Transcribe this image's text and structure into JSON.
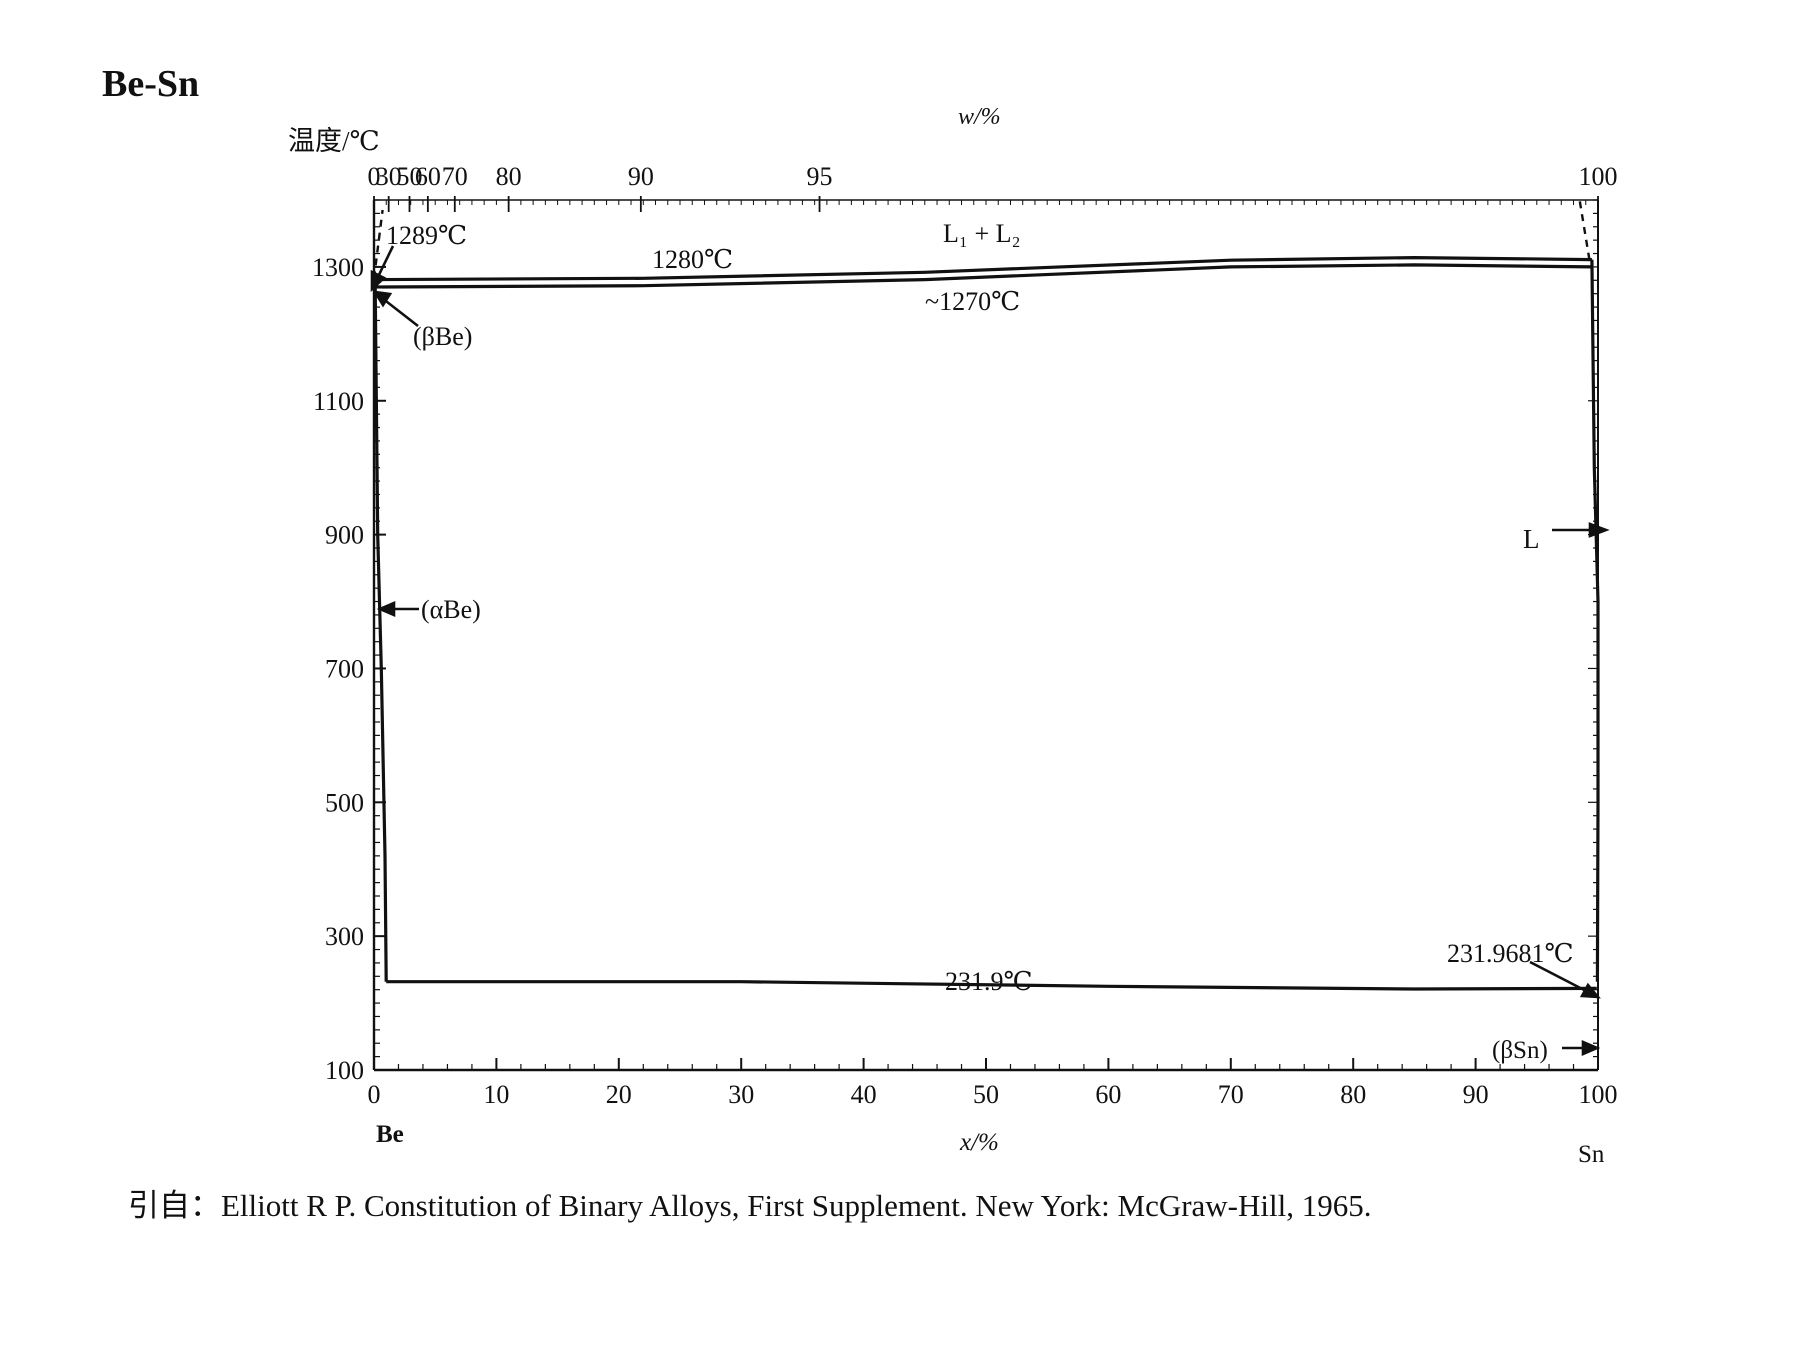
{
  "title": "Be-Sn",
  "source": "引自：Elliott R P. Constitution of Binary Alloys, First Supplement. New York: McGraw-Hill, 1965.",
  "chart_data": {
    "type": "line",
    "title": "Be-Sn",
    "ylabel": "温度/℃",
    "xlabel": "x/%",
    "top_axis_label": "w/%",
    "ylim": [
      100,
      1400
    ],
    "xlim": [
      0,
      100
    ],
    "y_ticks": [
      100,
      300,
      500,
      700,
      900,
      1100,
      1300
    ],
    "x_ticks": [
      0,
      10,
      20,
      30,
      40,
      50,
      60,
      70,
      80,
      90,
      100
    ],
    "top_ticks": [
      {
        "w": "0",
        "x": 0.0
      },
      {
        "w": "30",
        "x": 1.2
      },
      {
        "w": "50",
        "x": 2.9
      },
      {
        "w": "60",
        "x": 4.4
      },
      {
        "w": "70",
        "x": 6.6
      },
      {
        "w": "80",
        "x": 11.0
      },
      {
        "w": "90",
        "x": 21.8
      },
      {
        "w": "95",
        "x": 36.4
      },
      {
        "w": "100",
        "x": 100.0
      }
    ],
    "element_left": "Be",
    "element_right": "Sn",
    "series": [
      {
        "name": "",
        "style": "solid",
        "points": [
          [
            0,
            1281
          ],
          [
            22,
            1283
          ],
          [
            45,
            1292
          ],
          [
            70,
            1310
          ],
          [
            85,
            1314
          ],
          [
            99.5,
            1311
          ]
        ]
      },
      {
        "name": "",
        "style": "solid",
        "points": [
          [
            0,
            1270
          ],
          [
            22,
            1272
          ],
          [
            45,
            1281
          ],
          [
            70,
            1300
          ],
          [
            85,
            1303
          ],
          [
            99.5,
            1300
          ]
        ]
      },
      {
        "name": "",
        "style": "solid",
        "points": [
          [
            0.1,
            1270
          ],
          [
            0.3,
            900
          ],
          [
            0.6,
            700
          ],
          [
            0.9,
            420
          ],
          [
            1.0,
            231.9
          ]
        ]
      },
      {
        "name": "",
        "style": "solid",
        "points": [
          [
            1.0,
            231.9
          ],
          [
            30,
            231.9
          ],
          [
            60,
            225
          ],
          [
            85,
            221
          ],
          [
            99.9,
            222
          ]
        ]
      },
      {
        "name": "",
        "style": "solid",
        "points": [
          [
            99.5,
            1311
          ],
          [
            99.7,
            1000
          ],
          [
            100,
            800
          ],
          [
            100,
            500
          ],
          [
            99.95,
            231.97
          ]
        ]
      },
      {
        "name": "",
        "style": "dashed",
        "points": [
          [
            0,
            1283
          ],
          [
            0.7,
            1385
          ]
        ]
      },
      {
        "name": "",
        "style": "dashed",
        "points": [
          [
            99.3,
            1311
          ],
          [
            98.5,
            1400
          ]
        ]
      }
    ],
    "annotations": {
      "t1289": "1289℃",
      "t1280": "1280℃",
      "t1270": "~1270℃",
      "l1l2": "L₁ + L₂",
      "beta_be": "(βBe)",
      "alpha_be": "(αBe)",
      "liquid": "L",
      "t2319": "231.9℃",
      "t2319681": "231.9681℃",
      "beta_sn": "(βSn)"
    }
  }
}
